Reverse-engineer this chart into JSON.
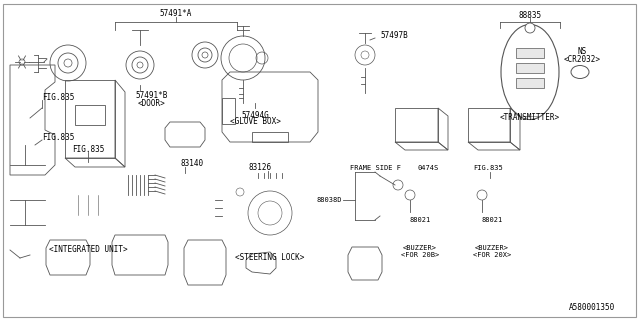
{
  "bg_color": "#ffffff",
  "line_color": "#555555",
  "text_color": "#000000",
  "diagram_ref": "A580001350",
  "font_size": 6.0,
  "parts": {
    "57491A_label": "57491*A",
    "57491B_label": "57491*B",
    "57491B_sub": "<DOOR>",
    "57494G_label": "57494G",
    "57494G_sub": "<GLOVE BOX>",
    "57497B_label": "57497B",
    "88835_label": "88835",
    "ns_label": "NS",
    "cr2032_label": "<CR2032>",
    "transmitter_label": "<TRANSMITTER>",
    "fig835_1": "FIG.835",
    "fig835_2": "FIG.835",
    "fig835_3": "FIG.835",
    "83140_label": "83140",
    "83126_label": "83126",
    "frame_side_label": "FRAME SIDE F",
    "0474S_label": "0474S",
    "88038D_label": "88038D",
    "88021_l": "88021",
    "88021_r": "88021",
    "buzzer_20b_1": "<BUZZER>",
    "buzzer_20b_2": "<FOR 20B>",
    "buzzer_20x_1": "<BUZZER>",
    "buzzer_20x_2": "<FOR 20X>",
    "integrated_unit": "<INTEGRATED UNIT>",
    "steering_lock": "<STEERING LOCK>"
  }
}
